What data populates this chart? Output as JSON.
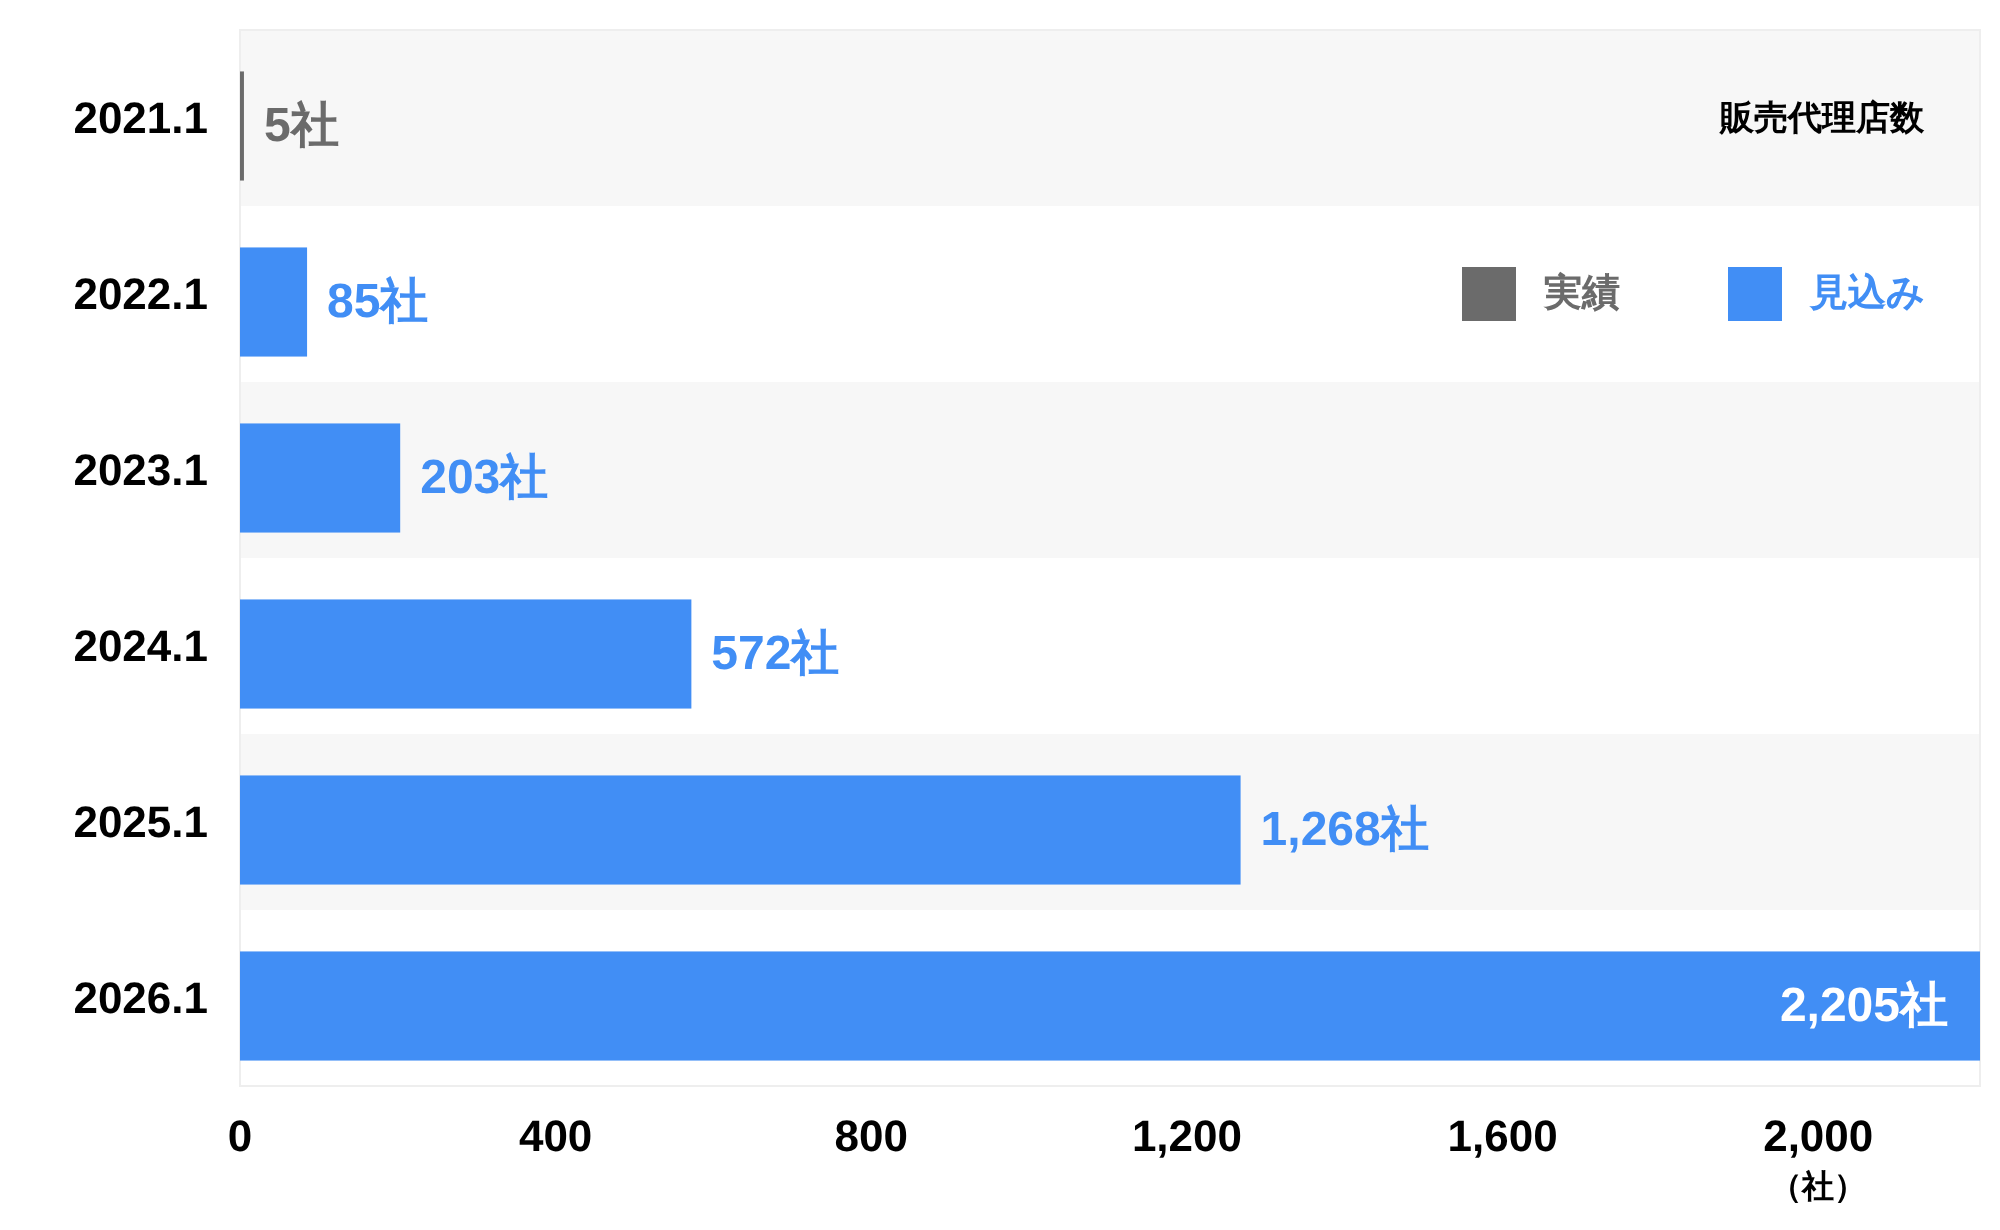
{
  "chart_data": {
    "type": "bar",
    "orientation": "horizontal",
    "title": "販売代理店数",
    "xlabel": "（社）",
    "categories": [
      "2021.1",
      "2022.1",
      "2023.1",
      "2024.1",
      "2025.1",
      "2026.1"
    ],
    "series": [
      {
        "name": "実績",
        "color": "#6b6b6b",
        "values": [
          5,
          null,
          null,
          null,
          null,
          null
        ],
        "value_labels": [
          "5社",
          null,
          null,
          null,
          null,
          null
        ]
      },
      {
        "name": "見込み",
        "color": "#418ef5",
        "values": [
          null,
          85,
          203,
          572,
          1268,
          2205
        ],
        "value_labels": [
          null,
          "85社",
          "203社",
          "572社",
          "1,268社",
          "2,205社"
        ]
      }
    ],
    "xlim": [
      0,
      2205
    ],
    "xticks": [
      0,
      400,
      800,
      {
        "value": 1200,
        "label": "1,200"
      },
      {
        "value": 1600,
        "label": "1,600"
      },
      {
        "value": 2000,
        "label": "2,000"
      }
    ],
    "legend": "top right"
  }
}
